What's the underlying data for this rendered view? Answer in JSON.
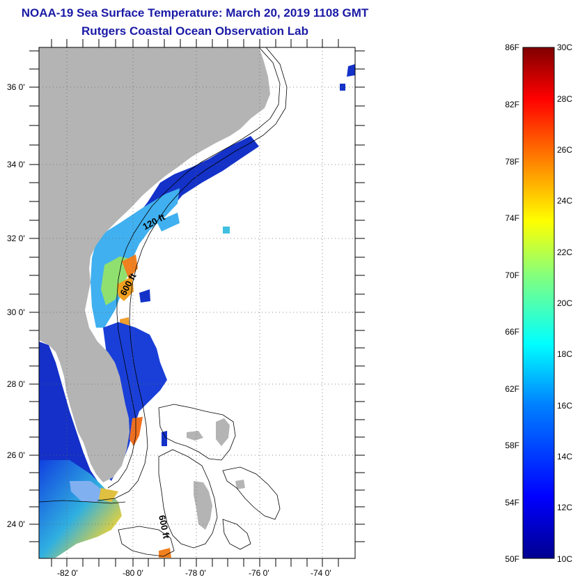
{
  "title": {
    "line1": "NOAA-19 Sea Surface Temperature:  March 20, 2019 1108 GMT",
    "line2": "Rutgers Coastal Ocean Observation Lab"
  },
  "map": {
    "lat_ticks": [
      "36 0'",
      "34 0'",
      "32 0'",
      "30 0'",
      "28 0'",
      "26 0'",
      "24 0'"
    ],
    "lon_ticks": [
      "-82 0'",
      "-80 0'",
      "-78 0'",
      "-76 0'",
      "-74 0'"
    ],
    "contour_labels": [
      "120 ft",
      "600 ft",
      "600 ft"
    ],
    "land_color": "#b4b4b4"
  },
  "colorbar": {
    "f_labels": [
      "86F",
      "82F",
      "78F",
      "74F",
      "70F",
      "66F",
      "62F",
      "58F",
      "54F",
      "50F"
    ],
    "c_labels": [
      "30C",
      "28C",
      "26C",
      "24C",
      "22C",
      "20C",
      "18C",
      "16C",
      "14C",
      "12C",
      "10C"
    ],
    "colors": [
      "#00008f",
      "#0000ff",
      "#0080ff",
      "#00ffff",
      "#80ff80",
      "#ffff00",
      "#ff8000",
      "#ff0000",
      "#800000"
    ]
  }
}
